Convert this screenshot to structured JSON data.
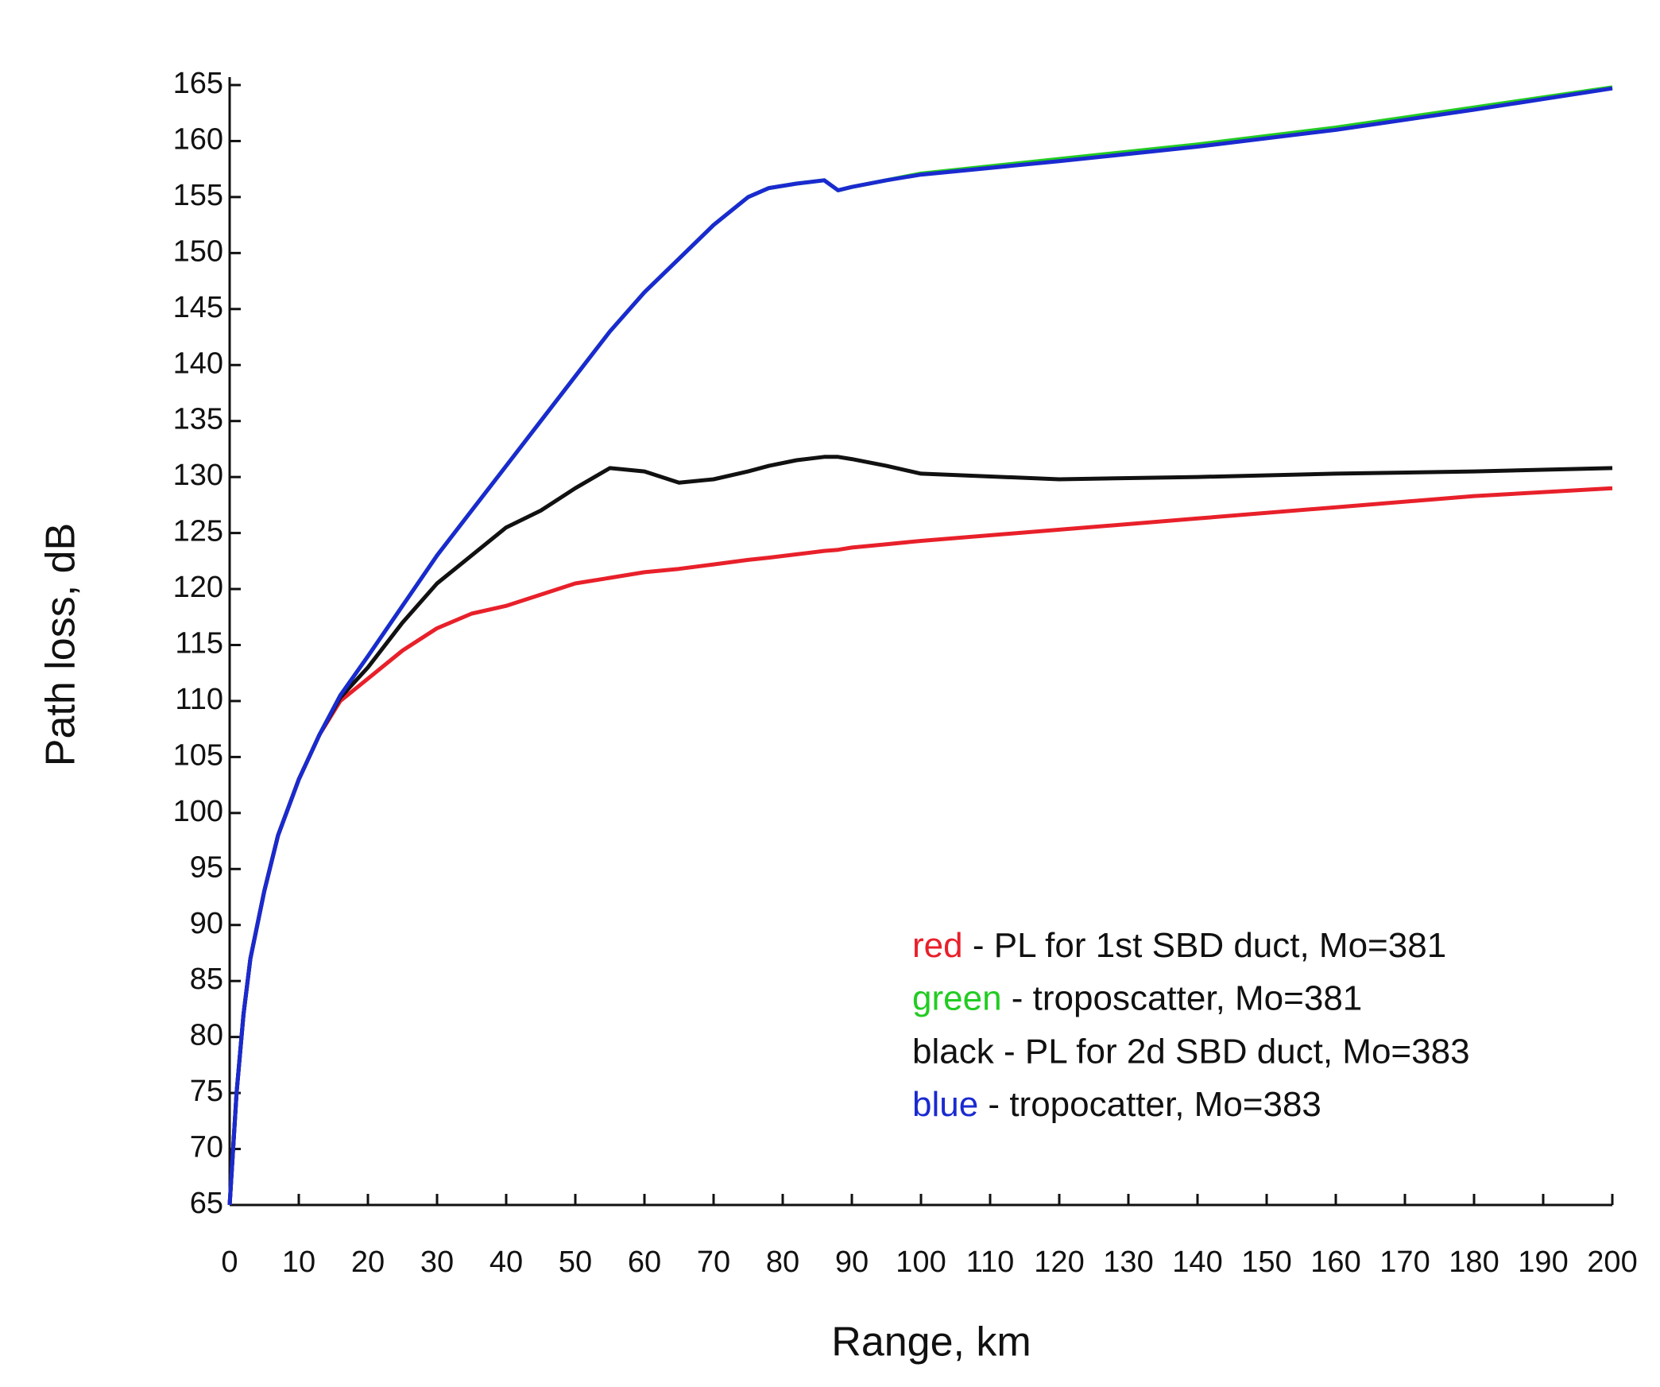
{
  "chart_data": {
    "type": "line",
    "xlabel": "Range, km",
    "ylabel": "Path loss, dB",
    "xlim": [
      0,
      200
    ],
    "ylim": [
      65,
      165
    ],
    "xticks": [
      0,
      10,
      20,
      30,
      40,
      50,
      60,
      70,
      80,
      90,
      100,
      110,
      120,
      130,
      140,
      150,
      160,
      170,
      180,
      190,
      200
    ],
    "yticks": [
      65,
      70,
      75,
      80,
      85,
      90,
      95,
      100,
      105,
      110,
      115,
      120,
      125,
      130,
      135,
      140,
      145,
      150,
      155,
      160,
      165
    ],
    "legend_separator": "-",
    "x": [
      0,
      1,
      2,
      3,
      5,
      7,
      10,
      13,
      16,
      20,
      25,
      30,
      35,
      40,
      45,
      50,
      55,
      60,
      65,
      70,
      75,
      78,
      82,
      86,
      88,
      90,
      95,
      100,
      120,
      140,
      160,
      180,
      200
    ],
    "series": [
      {
        "key": "green",
        "name": "troposcatter, Mo=381",
        "color": "#22cc22",
        "values": [
          65,
          75,
          82,
          87,
          93,
          98,
          103,
          107,
          110.5,
          114,
          118.5,
          123,
          127,
          131,
          135,
          139,
          143,
          146.5,
          149.5,
          152.5,
          155,
          155.8,
          156.2,
          156.5,
          155.6,
          155.9,
          156.5,
          157.1,
          158.4,
          159.7,
          161.2,
          163,
          164.8
        ]
      },
      {
        "key": "red",
        "name": "PL for 1st SBD duct, Mo=381",
        "color": "#e8202a",
        "values": [
          65,
          75,
          82,
          87,
          93,
          98,
          103,
          107,
          110,
          112,
          114.5,
          116.5,
          117.8,
          118.5,
          119.5,
          120.5,
          121,
          121.5,
          121.8,
          122.2,
          122.6,
          122.8,
          123.1,
          123.4,
          123.5,
          123.7,
          124,
          124.3,
          125.3,
          126.3,
          127.3,
          128.3,
          129
        ]
      },
      {
        "key": "black",
        "name": "PL for 2d SBD duct, Mo=383",
        "color": "#111111",
        "values": [
          65,
          75,
          82,
          87,
          93,
          98,
          103,
          107,
          110.3,
          113,
          117,
          120.5,
          123,
          125.5,
          127,
          129,
          130.8,
          130.5,
          129.5,
          129.8,
          130.5,
          131,
          131.5,
          131.8,
          131.8,
          131.6,
          131,
          130.3,
          129.8,
          130,
          130.3,
          130.5,
          130.8
        ]
      },
      {
        "key": "blue",
        "name": "tropocatter, Mo=383",
        "color": "#1a2ad0",
        "values": [
          65,
          75,
          82,
          87,
          93,
          98,
          103,
          107,
          110.5,
          114,
          118.5,
          123,
          127,
          131,
          135,
          139,
          143,
          146.5,
          149.5,
          152.5,
          155,
          155.8,
          156.2,
          156.5,
          155.6,
          155.9,
          156.5,
          157,
          158.2,
          159.5,
          161,
          162.8,
          164.7
        ]
      }
    ]
  }
}
